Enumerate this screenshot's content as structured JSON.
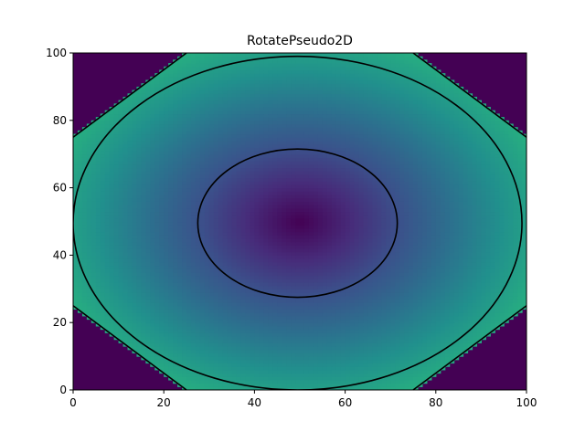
{
  "chart_data": {
    "type": "heatmap",
    "title": "RotatePseudo2D",
    "xlabel": "",
    "ylabel": "",
    "xlim": [
      0,
      100
    ],
    "ylim": [
      0,
      100
    ],
    "x_ticks": [
      "0",
      "20",
      "40",
      "60",
      "80",
      "100"
    ],
    "y_ticks": [
      "0",
      "20",
      "40",
      "60",
      "80",
      "100"
    ],
    "grid": false,
    "legend": "none",
    "colormap": "viridis",
    "field": {
      "description_of_values": "radial distance from center",
      "center": [
        50,
        50
      ],
      "grid_resolution": 100,
      "outer_region_value": "minimum (dark purple) in the four corners beyond the jagged contour"
    },
    "contours": [
      {
        "shape": "ellipse",
        "center_x": 49.5,
        "center_y": 49.5,
        "radius_x": 22,
        "radius_y": 22
      },
      {
        "shape": "ellipse",
        "center_x": 49.5,
        "center_y": 49.5,
        "radius_x": 49.5,
        "radius_y": 49.5
      }
    ],
    "colors": {
      "low": "#440154",
      "mid": "#31688e",
      "high": "#35b779",
      "contour": "#000000"
    }
  }
}
